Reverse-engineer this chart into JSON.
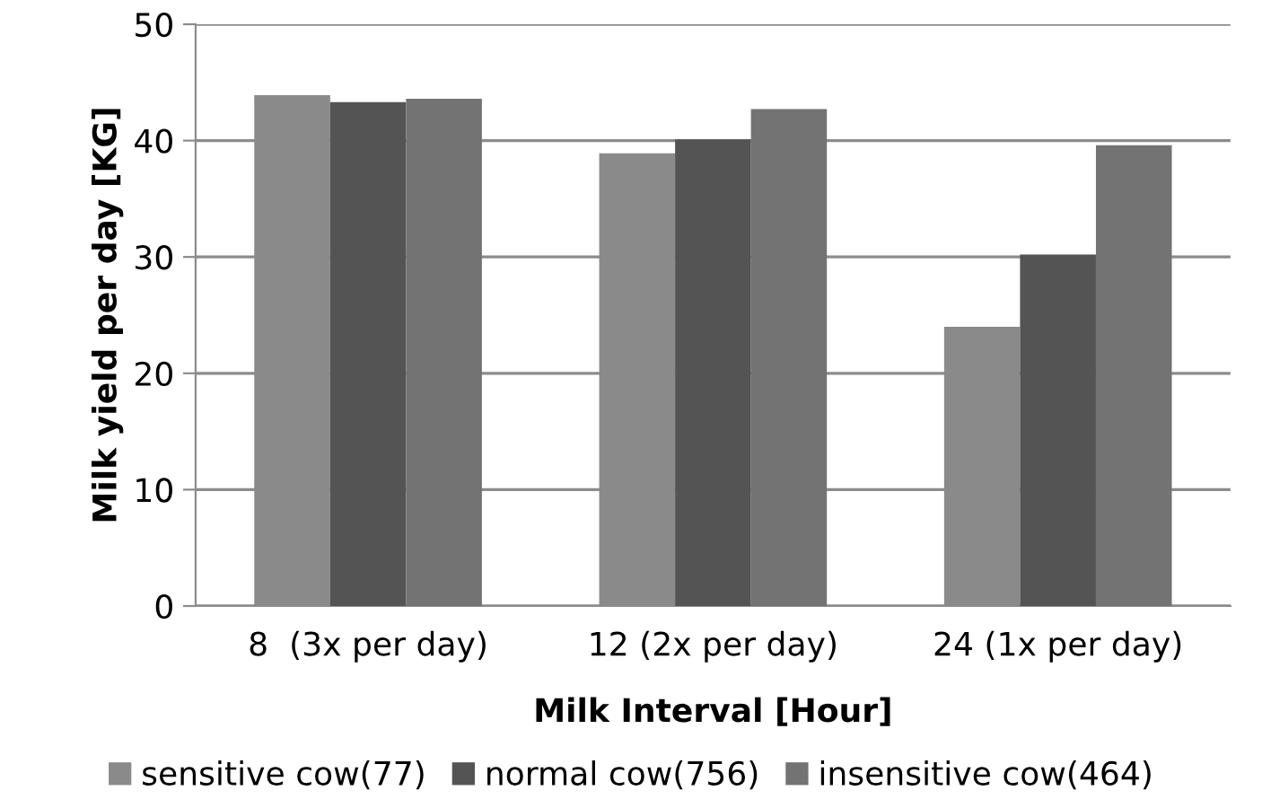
{
  "chart_data": {
    "type": "bar",
    "xlabel": "Milk Interval [Hour]",
    "ylabel": "Milk yield per day [KG]",
    "categories": [
      "8  (3x per day)",
      "12 (2x per day)",
      "24 (1x per day)"
    ],
    "series": [
      {
        "name": "sensitive cow(77)",
        "color": "#8a8a8a",
        "values": [
          43.9,
          38.9,
          24.0
        ]
      },
      {
        "name": "normal cow(756)",
        "color": "#545454",
        "values": [
          43.3,
          40.1,
          30.2
        ]
      },
      {
        "name": "insensitive cow(464)",
        "color": "#737373",
        "values": [
          43.6,
          42.7,
          39.6
        ]
      }
    ],
    "ylim": [
      0,
      50
    ],
    "yticks": [
      0,
      10,
      20,
      30,
      40,
      50
    ],
    "grid": "y",
    "legend": "bottom"
  }
}
